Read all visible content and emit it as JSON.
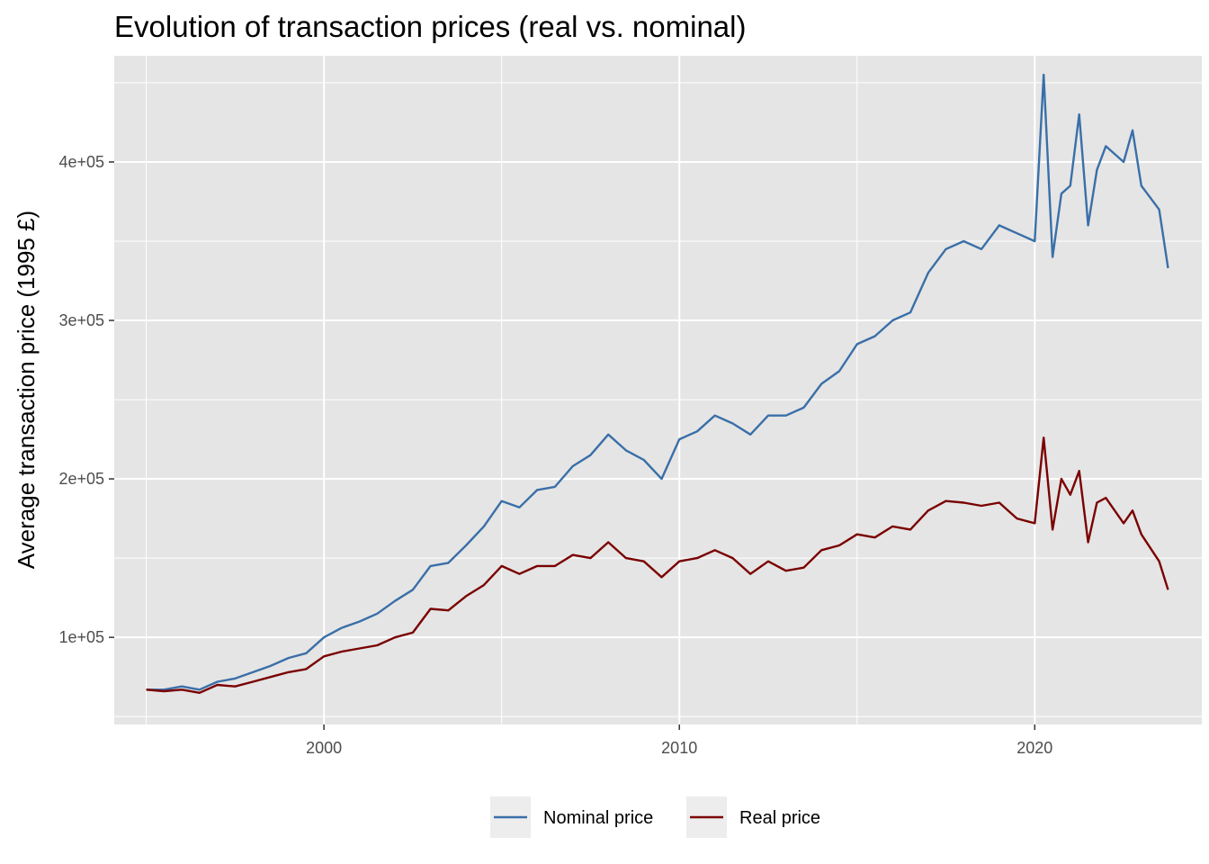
{
  "chart_data": {
    "type": "line",
    "title": "Evolution of transaction prices (real vs. nominal)",
    "xlabel": "",
    "ylabel": "Average transaction price (1995 £)",
    "xlim": [
      1994.1,
      2024.7
    ],
    "ylim": [
      45000,
      467000
    ],
    "x_ticks": [
      2000,
      2010,
      2020
    ],
    "x_tick_labels": [
      "2000",
      "2010",
      "2020"
    ],
    "y_ticks": [
      100000,
      200000,
      300000,
      400000
    ],
    "y_tick_labels": [
      "1e+05",
      "2e+05",
      "3e+05",
      "4e+05"
    ],
    "grid": true,
    "legend_position": "bottom",
    "colors": {
      "panel": "#e5e5e5",
      "grid": "#ffffff",
      "nominal": "#3a6fa8",
      "real": "#7a0000"
    },
    "series": [
      {
        "name": "Nominal price",
        "color": "#3a6fa8",
        "x": [
          1995.0,
          1995.5,
          1996.0,
          1996.5,
          1997.0,
          1997.5,
          1998.0,
          1998.5,
          1999.0,
          1999.5,
          2000.0,
          2000.5,
          2001.0,
          2001.5,
          2002.0,
          2002.5,
          2003.0,
          2003.5,
          2004.0,
          2004.5,
          2005.0,
          2005.5,
          2006.0,
          2006.5,
          2007.0,
          2007.5,
          2008.0,
          2008.5,
          2009.0,
          2009.5,
          2010.0,
          2010.5,
          2011.0,
          2011.5,
          2012.0,
          2012.5,
          2013.0,
          2013.5,
          2014.0,
          2014.5,
          2015.0,
          2015.5,
          2016.0,
          2016.5,
          2017.0,
          2017.5,
          2018.0,
          2018.5,
          2019.0,
          2019.5,
          2020.0,
          2020.25,
          2020.5,
          2020.75,
          2021.0,
          2021.25,
          2021.5,
          2021.75,
          2022.0,
          2022.5,
          2022.75,
          2023.0,
          2023.5,
          2023.75
        ],
        "values": [
          67000,
          67000,
          69000,
          67000,
          72000,
          74000,
          78000,
          82000,
          87000,
          90000,
          100000,
          106000,
          110000,
          115000,
          123000,
          130000,
          145000,
          147000,
          158000,
          170000,
          186000,
          182000,
          193000,
          195000,
          208000,
          215000,
          228000,
          218000,
          212000,
          200000,
          225000,
          230000,
          240000,
          235000,
          228000,
          240000,
          240000,
          245000,
          260000,
          268000,
          285000,
          290000,
          300000,
          305000,
          330000,
          345000,
          350000,
          345000,
          360000,
          355000,
          350000,
          455000,
          340000,
          380000,
          385000,
          430000,
          360000,
          395000,
          410000,
          400000,
          420000,
          385000,
          370000,
          333000
        ]
      },
      {
        "name": "Real price",
        "color": "#7a0000",
        "x": [
          1995.0,
          1995.5,
          1996.0,
          1996.5,
          1997.0,
          1997.5,
          1998.0,
          1998.5,
          1999.0,
          1999.5,
          2000.0,
          2000.5,
          2001.0,
          2001.5,
          2002.0,
          2002.5,
          2003.0,
          2003.5,
          2004.0,
          2004.5,
          2005.0,
          2005.5,
          2006.0,
          2006.5,
          2007.0,
          2007.5,
          2008.0,
          2008.5,
          2009.0,
          2009.5,
          2010.0,
          2010.5,
          2011.0,
          2011.5,
          2012.0,
          2012.5,
          2013.0,
          2013.5,
          2014.0,
          2014.5,
          2015.0,
          2015.5,
          2016.0,
          2016.5,
          2017.0,
          2017.5,
          2018.0,
          2018.5,
          2019.0,
          2019.5,
          2020.0,
          2020.25,
          2020.5,
          2020.75,
          2021.0,
          2021.25,
          2021.5,
          2021.75,
          2022.0,
          2022.5,
          2022.75,
          2023.0,
          2023.5,
          2023.75
        ],
        "values": [
          67000,
          66000,
          67000,
          65000,
          70000,
          69000,
          72000,
          75000,
          78000,
          80000,
          88000,
          91000,
          93000,
          95000,
          100000,
          103000,
          118000,
          117000,
          126000,
          133000,
          145000,
          140000,
          145000,
          145000,
          152000,
          150000,
          160000,
          150000,
          148000,
          138000,
          148000,
          150000,
          155000,
          150000,
          140000,
          148000,
          142000,
          144000,
          155000,
          158000,
          165000,
          163000,
          170000,
          168000,
          180000,
          186000,
          185000,
          183000,
          185000,
          175000,
          172000,
          226000,
          168000,
          200000,
          190000,
          205000,
          160000,
          185000,
          188000,
          172000,
          180000,
          165000,
          148000,
          130000
        ]
      }
    ]
  }
}
